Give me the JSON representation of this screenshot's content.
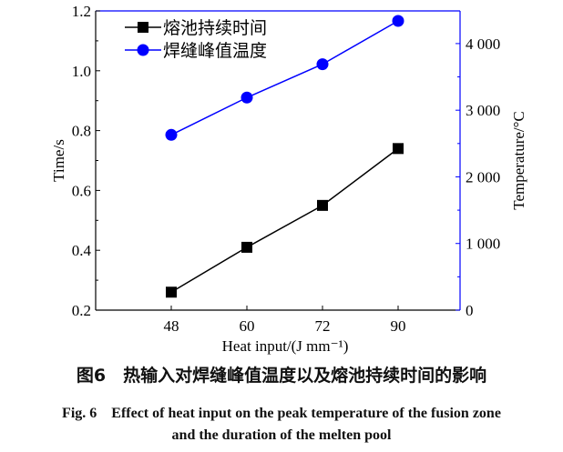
{
  "chart_data": {
    "type": "line",
    "categories": [
      "48",
      "60",
      "72",
      "90"
    ],
    "xlabel": "Heat input/(J  mm⁻¹)",
    "ylabel_left": "Time/s",
    "ylabel_right": "Temperature/°C",
    "ylim_left": [
      0.2,
      1.2
    ],
    "yticks_left": [
      "0.2",
      "0.4",
      "0.6",
      "0.8",
      "1.0",
      "1.2"
    ],
    "ylim_right": [
      0,
      4490
    ],
    "yticks_right": [
      "0",
      "1 000",
      "2 000",
      "3 000",
      "4 000"
    ],
    "legend_position": "top-left",
    "grid": false,
    "series": [
      {
        "name": "熔池持续时间",
        "axis": "left",
        "marker": "square",
        "color": "#000000",
        "values": [
          0.26,
          0.41,
          0.55,
          0.74
        ]
      },
      {
        "name": "焊缝峰值温度",
        "axis": "right",
        "marker": "circle",
        "color": "#0000ff",
        "values": [
          2630,
          3190,
          3690,
          4340
        ]
      }
    ],
    "right_axis_color": "#0000ff"
  },
  "caption": {
    "cn": "图6　热输入对焊缝峰值温度以及熔池持续时间的影响",
    "en_line1": "Fig. 6　Effect of heat input on the peak temperature of the fusion zone",
    "en_line2": "and the duration of the melten pool"
  }
}
